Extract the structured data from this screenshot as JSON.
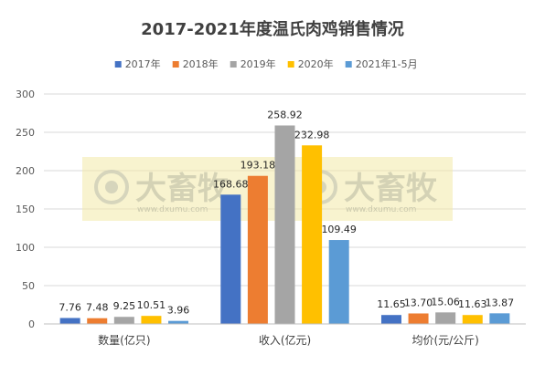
{
  "chart_data": {
    "type": "bar",
    "title": "2017-2021年度温氏肉鸡销售情况",
    "categories": [
      "数量(亿只)",
      "收入(亿元)",
      "均价(元/公斤)"
    ],
    "ylim": [
      0,
      300
    ],
    "yticks": [
      0,
      50,
      100,
      150,
      200,
      250,
      300
    ],
    "grid": true,
    "legend_position": "top",
    "series": [
      {
        "name": "2017年",
        "color": "#4472c4",
        "values": [
          7.76,
          168.68,
          11.65
        ],
        "labels": [
          "7.76",
          "168.68",
          "11.65"
        ]
      },
      {
        "name": "2018年",
        "color": "#ed7d31",
        "values": [
          7.48,
          193.18,
          13.7
        ],
        "labels": [
          "7.48",
          "193.18",
          "13.70"
        ]
      },
      {
        "name": "2019年",
        "color": "#a5a5a5",
        "values": [
          9.25,
          258.92,
          15.06
        ],
        "labels": [
          "9.25",
          "258.92",
          "15.06"
        ]
      },
      {
        "name": "2020年",
        "color": "#ffc000",
        "values": [
          10.51,
          232.98,
          11.63
        ],
        "labels": [
          "10.51",
          "232.98",
          "11.63"
        ]
      },
      {
        "name": "2021年1-5月",
        "color": "#5b9bd5",
        "values": [
          3.96,
          109.49,
          13.87
        ],
        "labels": [
          "3.96",
          "109.49",
          "13.87"
        ]
      }
    ]
  },
  "watermark": {
    "brand": "大畜牧",
    "url": "www.dxumu.com"
  }
}
